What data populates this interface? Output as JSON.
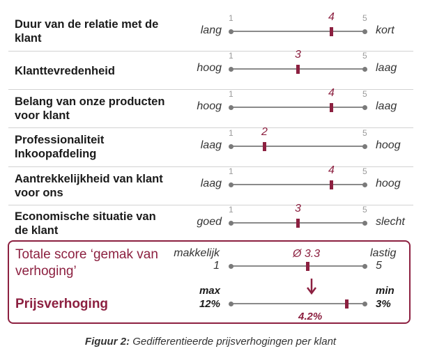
{
  "rows": [
    {
      "label": "Duur van de relatie met de klant",
      "left": "lang",
      "right": "kort",
      "min": "1",
      "max": "5",
      "value": 4,
      "value_label": "4"
    },
    {
      "label": "Klanttevredenheid",
      "left": "hoog",
      "right": "laag",
      "min": "1",
      "max": "5",
      "value": 3,
      "value_label": "3"
    },
    {
      "label": "Belang van onze producten voor klant",
      "left": "hoog",
      "right": "laag",
      "min": "1",
      "max": "5",
      "value": 4,
      "value_label": "4"
    },
    {
      "label": "Professionaliteit Inkoopafdeling",
      "left": "laag",
      "right": "hoog",
      "min": "1",
      "max": "5",
      "value": 2,
      "value_label": "2"
    },
    {
      "label": "Aantrekkelijkheid van klant voor ons",
      "left": "laag",
      "right": "hoog",
      "min": "1",
      "max": "5",
      "value": 4,
      "value_label": "4"
    },
    {
      "label": "Economische situatie van de klant",
      "left": "goed",
      "right": "slecht",
      "min": "1",
      "max": "5",
      "value": 3,
      "value_label": "3"
    }
  ],
  "total": {
    "title": "Totale score ‘gemak van verhoging’",
    "left_label": "makkelijk",
    "left_num": "1",
    "right_label": "lastig",
    "right_num": "5",
    "value": 3.3,
    "value_label": "Ø 3.3"
  },
  "price": {
    "title": "Prijsverhoging",
    "left_label": "max",
    "left_pct": "12%",
    "right_label": "min",
    "right_pct": "3%",
    "value": 4.2,
    "value_label": "4.2%"
  },
  "caption": {
    "prefix": "Figuur 2:",
    "text": " Gedifferentieerde prijsverhogingen per klant"
  },
  "colors": {
    "accent": "#8c2040",
    "line": "#8a8a8a"
  }
}
